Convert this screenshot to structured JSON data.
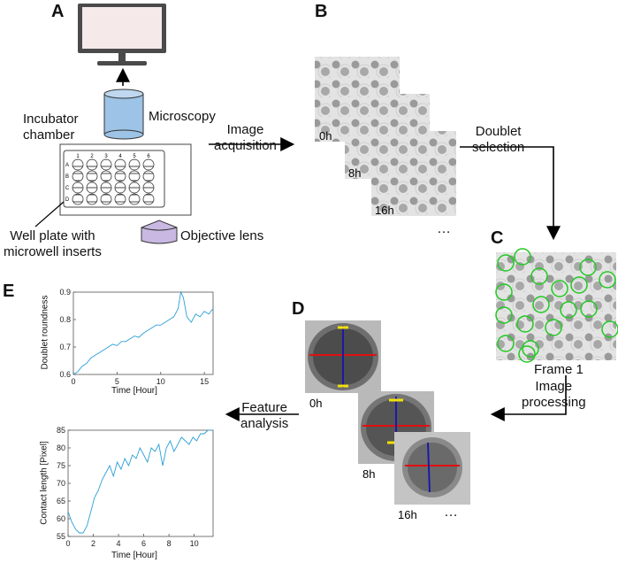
{
  "panels": {
    "a": "A",
    "b": "B",
    "c": "C",
    "d": "D",
    "e": "E"
  },
  "labels": {
    "incubator": "Incubator\nchamber",
    "microscopy": "Microscopy",
    "objective_lens": "Objective lens",
    "well_plate": "Well plate with\nmicrowell inserts",
    "image_acquisition": "Image\nacquisition",
    "doublet_selection": "Doublet\nselection",
    "frame1": "Frame 1",
    "image_processing": "Image\nprocessing",
    "feature_analysis": "Feature\nanalysis"
  },
  "times_b": [
    "0h",
    "8h",
    "16h"
  ],
  "times_d": [
    "0h",
    "8h",
    "16h"
  ],
  "ellipsis": "…",
  "plate": {
    "cols": [
      "1",
      "2",
      "3",
      "4",
      "5",
      "6"
    ],
    "rows": [
      "A",
      "B",
      "C",
      "D"
    ]
  },
  "colors": {
    "monitor_frame": "#4a4a4a",
    "monitor_screen": "#f6e9ea",
    "cylinder": "#9dc3e6",
    "lens": "#c9b8e2",
    "highlight": "#22c922",
    "series": "#2a9fd6"
  },
  "chart_data": [
    {
      "type": "line",
      "xlabel": "Time [Hour]",
      "ylabel": "Doublet roundness",
      "xlim": [
        0,
        16
      ],
      "ylim": [
        0.6,
        0.9
      ],
      "xticks": [
        0,
        5,
        10,
        15
      ],
      "yticks": [
        0.6,
        0.7,
        0.8,
        0.9
      ],
      "series": [
        {
          "x": [
            0,
            0.5,
            1,
            1.5,
            2,
            2.5,
            3,
            3.5,
            4,
            4.5,
            5,
            5.5,
            6,
            6.5,
            7,
            7.5,
            8,
            8.5,
            9,
            9.5,
            10,
            10.5,
            11,
            11.5,
            12,
            12.3,
            12.6,
            13,
            13.5,
            14,
            14.5,
            15,
            15.5,
            16
          ],
          "y": [
            0.6,
            0.61,
            0.63,
            0.64,
            0.66,
            0.67,
            0.68,
            0.69,
            0.7,
            0.71,
            0.705,
            0.72,
            0.72,
            0.73,
            0.74,
            0.735,
            0.75,
            0.76,
            0.77,
            0.78,
            0.78,
            0.79,
            0.8,
            0.81,
            0.84,
            0.9,
            0.88,
            0.81,
            0.79,
            0.82,
            0.81,
            0.83,
            0.82,
            0.84
          ]
        }
      ]
    },
    {
      "type": "line",
      "xlabel": "Time [Hour]",
      "ylabel": "Contact length [Pixel]",
      "xlim": [
        0,
        11.5
      ],
      "ylim": [
        55,
        85
      ],
      "xticks": [
        0,
        2,
        4,
        6,
        8,
        10
      ],
      "yticks": [
        55,
        60,
        65,
        70,
        75,
        80,
        85
      ],
      "series": [
        {
          "x": [
            0,
            0.3,
            0.6,
            0.9,
            1.2,
            1.5,
            1.8,
            2.1,
            2.4,
            2.7,
            3.0,
            3.3,
            3.6,
            3.9,
            4.2,
            4.5,
            4.8,
            5.1,
            5.4,
            5.7,
            6.0,
            6.3,
            6.6,
            6.9,
            7.2,
            7.5,
            7.8,
            8.1,
            8.4,
            8.7,
            9.0,
            9.3,
            9.6,
            9.9,
            10.2,
            10.5,
            10.8,
            11.1,
            11.4
          ],
          "y": [
            62,
            59,
            57,
            56,
            56,
            58,
            62,
            66,
            68,
            71,
            73,
            75,
            72,
            76,
            74,
            77,
            75,
            78,
            77,
            80,
            78,
            76,
            80,
            79,
            81,
            75,
            80,
            82,
            79,
            81,
            83,
            82,
            81,
            83,
            82,
            84,
            84,
            85,
            85
          ]
        }
      ]
    }
  ]
}
